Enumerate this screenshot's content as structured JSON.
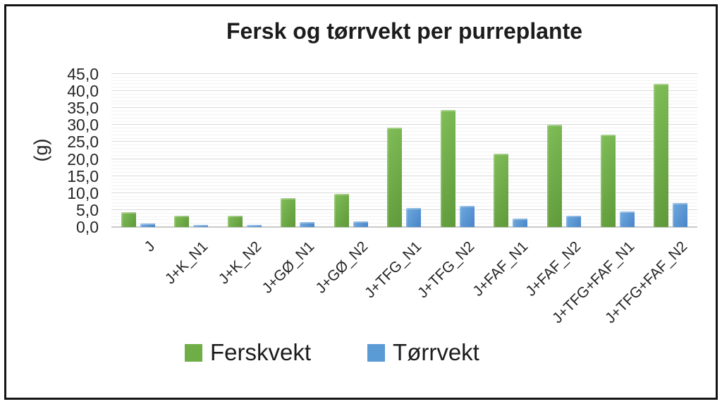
{
  "title": "Fersk og tørrvekt per purreplante",
  "chart_data": {
    "type": "bar",
    "title": "Fersk og tørrvekt per purreplante",
    "categories": [
      "J",
      "J+K_N1",
      "J+K_N2",
      "J+GØ_N1",
      "J+GØ_N2",
      "J+TFG_N1",
      "J+TFG_N2",
      "J+FAF_N1",
      "J+FAF_N2",
      "J+TFG+FAF_N1",
      "J+TFG+FAF_N2"
    ],
    "series": [
      {
        "name": "Ferskvekt",
        "color": "#6fad47",
        "color_light": "#80be58",
        "color_dark": "#5f993a",
        "values": [
          4.4,
          3.3,
          3.3,
          8.5,
          9.8,
          29.2,
          34.4,
          21.5,
          30.1,
          27.2,
          42.2
        ]
      },
      {
        "name": "Tørrvekt",
        "color": "#5b9bd5",
        "color_light": "#6fa9de",
        "color_dark": "#4885c8",
        "values": [
          1.0,
          0.7,
          0.7,
          1.4,
          1.7,
          5.5,
          6.2,
          2.4,
          3.3,
          4.6,
          7.0
        ]
      }
    ],
    "xlabel": "",
    "ylabel": "(g)",
    "ylim": [
      0,
      45
    ],
    "ytick_step": 5,
    "minor_tick_step": 1,
    "ytick_labels": [
      "0,0",
      "5,0",
      "10,0",
      "15,0",
      "20,0",
      "25,0",
      "30,0",
      "35,0",
      "40,0",
      "45,0"
    ],
    "decimal_separator": ",",
    "grid": true,
    "legend_position": "bottom",
    "x_labels_rotation_deg": -45
  }
}
